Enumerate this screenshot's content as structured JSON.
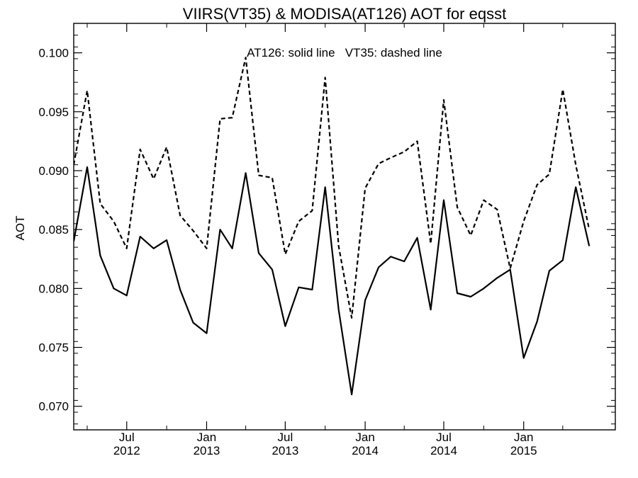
{
  "chart_data": {
    "type": "line",
    "title": "VIIRS(VT35) & MODISA(AT126)  AOT for eqsst",
    "ylabel": "AOT",
    "xlabel": "",
    "annotation": "AT126: solid line   VT35: dashed line",
    "ylim": [
      0.068,
      0.1025
    ],
    "xlim": [
      "2012-03-01",
      "2015-07-31"
    ],
    "yticks": [
      "0.070",
      "0.075",
      "0.080",
      "0.085",
      "0.090",
      "0.095",
      "0.100"
    ],
    "ytick_values": [
      0.07,
      0.075,
      0.08,
      0.085,
      0.09,
      0.095,
      0.1
    ],
    "xticks": [
      {
        "date": "2012-07-01",
        "month": "Jul",
        "year": "2012"
      },
      {
        "date": "2013-01-01",
        "month": "Jan",
        "year": "2013"
      },
      {
        "date": "2013-07-01",
        "month": "Jul",
        "year": "2013"
      },
      {
        "date": "2014-01-01",
        "month": "Jan",
        "year": "2014"
      },
      {
        "date": "2014-07-01",
        "month": "Jul",
        "year": "2014"
      },
      {
        "date": "2015-01-01",
        "month": "Jan",
        "year": "2015"
      }
    ],
    "minor_xticks": [
      "2012-04-01",
      "2012-10-01",
      "2013-04-01",
      "2013-10-01",
      "2014-04-01",
      "2014-10-01",
      "2015-04-01"
    ],
    "grid": false,
    "legend": "none",
    "series": [
      {
        "name": "AT126",
        "style": "solid",
        "color": "#000000",
        "x": [
          "2012-03-01",
          "2012-04-01",
          "2012-05-01",
          "2012-06-01",
          "2012-07-01",
          "2012-08-01",
          "2012-09-01",
          "2012-10-01",
          "2012-11-01",
          "2012-12-01",
          "2013-01-01",
          "2013-02-01",
          "2013-03-01",
          "2013-04-01",
          "2013-05-01",
          "2013-06-01",
          "2013-07-01",
          "2013-08-01",
          "2013-09-01",
          "2013-10-01",
          "2013-11-01",
          "2013-12-01",
          "2014-01-01",
          "2014-02-01",
          "2014-03-01",
          "2014-04-01",
          "2014-05-01",
          "2014-06-01",
          "2014-07-01",
          "2014-08-01",
          "2014-09-01",
          "2014-10-01",
          "2014-11-01",
          "2014-12-01",
          "2015-01-01",
          "2015-02-01",
          "2015-03-01",
          "2015-04-01",
          "2015-05-01",
          "2015-06-01"
        ],
        "values": [
          0.084,
          0.0903,
          0.0828,
          0.08,
          0.0794,
          0.0844,
          0.0834,
          0.0841,
          0.0799,
          0.0771,
          0.0762,
          0.085,
          0.0834,
          0.0898,
          0.083,
          0.0816,
          0.0768,
          0.0801,
          0.0799,
          0.0886,
          0.0782,
          0.071,
          0.079,
          0.0818,
          0.0827,
          0.0823,
          0.0843,
          0.0782,
          0.0875,
          0.0796,
          0.0793,
          0.08,
          0.0809,
          0.0816,
          0.0741,
          0.0772,
          0.0815,
          0.0824,
          0.0886,
          0.0836
        ]
      },
      {
        "name": "VT35",
        "style": "dashed",
        "color": "#000000",
        "x": [
          "2012-03-01",
          "2012-04-01",
          "2012-05-01",
          "2012-06-01",
          "2012-07-01",
          "2012-08-01",
          "2012-09-01",
          "2012-10-01",
          "2012-11-01",
          "2012-12-01",
          "2013-01-01",
          "2013-02-01",
          "2013-03-01",
          "2013-04-01",
          "2013-05-01",
          "2013-06-01",
          "2013-07-01",
          "2013-08-01",
          "2013-09-01",
          "2013-10-01",
          "2013-11-01",
          "2013-12-01",
          "2014-01-01",
          "2014-02-01",
          "2014-03-01",
          "2014-04-01",
          "2014-05-01",
          "2014-06-01",
          "2014-07-01",
          "2014-08-01",
          "2014-09-01",
          "2014-10-01",
          "2014-11-01",
          "2014-12-01",
          "2015-01-01",
          "2015-02-01",
          "2015-03-01",
          "2015-04-01",
          "2015-05-01",
          "2015-06-01"
        ],
        "values": [
          0.0905,
          0.0968,
          0.0872,
          0.0857,
          0.0834,
          0.0918,
          0.0893,
          0.092,
          0.0862,
          0.0849,
          0.0834,
          0.0944,
          0.0945,
          0.0996,
          0.0896,
          0.0894,
          0.0829,
          0.0857,
          0.0866,
          0.0979,
          0.0836,
          0.0775,
          0.0885,
          0.0906,
          0.0911,
          0.0916,
          0.0925,
          0.0838,
          0.096,
          0.0869,
          0.0845,
          0.0875,
          0.0867,
          0.0817,
          0.0857,
          0.0888,
          0.0897,
          0.0969,
          0.0905,
          0.085
        ]
      }
    ]
  }
}
